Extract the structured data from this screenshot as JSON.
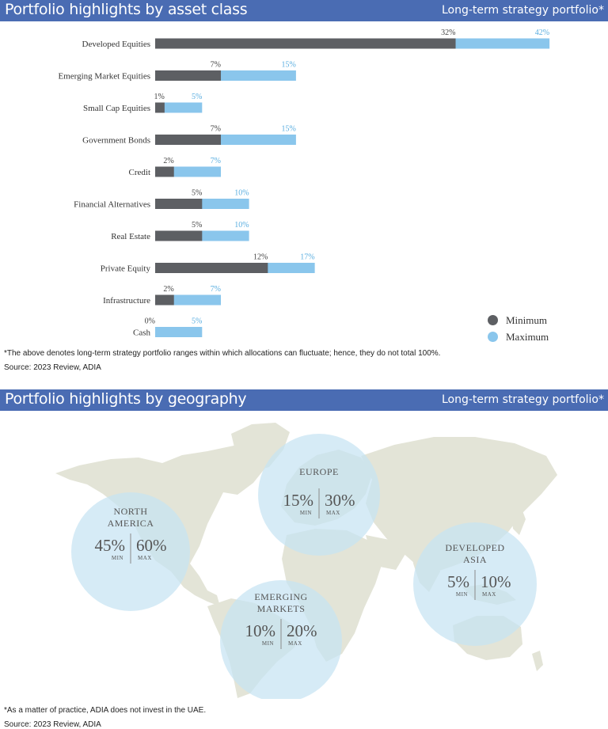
{
  "colors": {
    "header_bg": "#4a6cb3",
    "minimum": "#5d5f63",
    "maximum": "#8ac6ec",
    "circle": "#c6e3f2",
    "land": "#e3e4d7"
  },
  "section1": {
    "title": "Portfolio highlights by asset class",
    "subtitle": "Long-term strategy portfolio*"
  },
  "chart_data": [
    {
      "type": "bar",
      "orientation": "horizontal",
      "stacked": true,
      "categories": [
        "Developed Equities",
        "Emerging Market Equities",
        "Small Cap Equities",
        "Government Bonds",
        "Credit",
        "Financial Alternatives",
        "Real Estate",
        "Private Equity",
        "Infrastructure",
        "Cash"
      ],
      "series": [
        {
          "name": "Minimum",
          "values": [
            32,
            7,
            1,
            7,
            2,
            5,
            5,
            12,
            2,
            0
          ]
        },
        {
          "name": "Maximum",
          "values": [
            42,
            15,
            5,
            15,
            7,
            10,
            10,
            17,
            7,
            5
          ]
        }
      ],
      "value_labels": {
        "min": [
          "32%",
          "7%",
          "1%",
          "7%",
          "2%",
          "5%",
          "5%",
          "12%",
          "2%",
          "0%"
        ],
        "max": [
          "42%",
          "15%",
          "5%",
          "15%",
          "7%",
          "10%",
          "10%",
          "17%",
          "7%",
          "5%"
        ]
      },
      "grid": false,
      "legend_position": "bottom-right"
    }
  ],
  "legend": {
    "minimum": "Minimum",
    "maximum": "Maximum"
  },
  "notes1": {
    "footnote": "*The above denotes long-term strategy portfolio ranges within which allocations can fluctuate; hence, they do not total 100%.",
    "source": "Source: 2023 Review, ADIA"
  },
  "section2": {
    "title": "Portfolio highlights by geography",
    "subtitle": "Long-term strategy portfolio*"
  },
  "geography": {
    "regions": [
      {
        "id": "north-america",
        "name": [
          "NORTH",
          "AMERICA"
        ],
        "min": "45%",
        "max": "60%",
        "min_value": 45,
        "max_value": 60
      },
      {
        "id": "europe",
        "name": [
          "EUROPE"
        ],
        "min": "15%",
        "max": "30%",
        "min_value": 15,
        "max_value": 30
      },
      {
        "id": "emerging-markets",
        "name": [
          "EMERGING",
          "MARKETS"
        ],
        "min": "10%",
        "max": "20%",
        "min_value": 10,
        "max_value": 20
      },
      {
        "id": "developed-asia",
        "name": [
          "DEVELOPED",
          "ASIA"
        ],
        "min": "5%",
        "max": "10%",
        "min_value": 5,
        "max_value": 10
      }
    ],
    "min_label": "MIN",
    "max_label": "MAX"
  },
  "notes2": {
    "footnote": "*As a matter of practice, ADIA does not invest in the UAE.",
    "source": "Source: 2023 Review, ADIA"
  }
}
